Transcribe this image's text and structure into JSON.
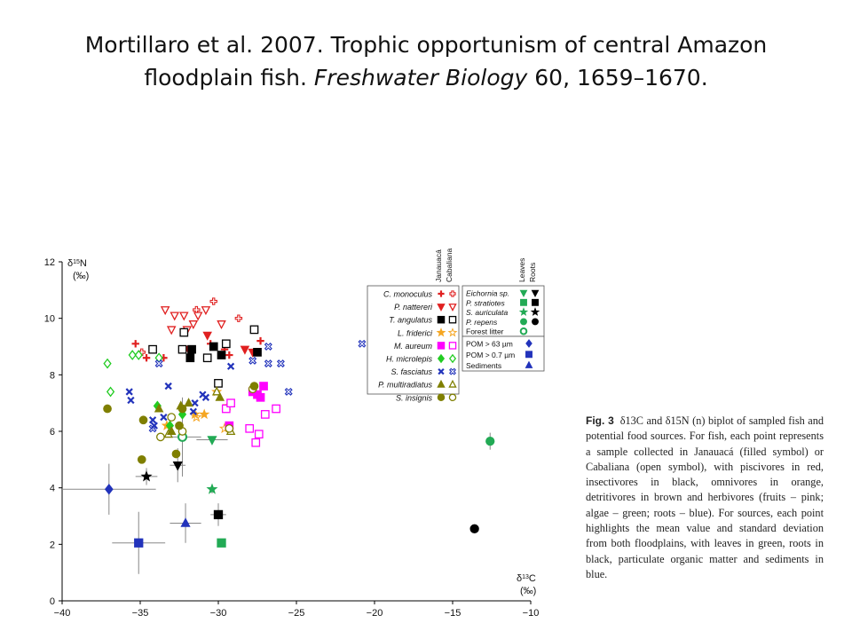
{
  "slide": {
    "title_line1": "Mortillaro et al. 2007. Trophic opportunism of central Amazon",
    "title_line2_prefix": "floodplain fish. ",
    "title_line2_journal": "Freshwater Biology",
    "title_line2_suffix": " 60, 1659–1670."
  },
  "caption": {
    "label": "Fig. 3",
    "text": "δ13C and δ15N (n) biplot of sampled fish and potential food sources. For fish, each point represents a sample collected in Janauacá (filled symbol) or Cabaliana (open symbol), with piscivores in red, insectivores in black, omnivores in orange, detritivores in brown and herbivores (fruits – pink; algae – green; roots – blue). For sources, each point highlights the mean value and standard deviation from both floodplains, with leaves in green, roots in black, particulate organic matter and sediments in blue."
  },
  "chart_data": {
    "type": "scatter",
    "xlabel": "δ13C (‰)",
    "ylabel": "δ15N (‰)",
    "xlim": [
      -40,
      -10
    ],
    "ylim": [
      0,
      12
    ],
    "xticks": [
      -40,
      -35,
      -30,
      -25,
      -20,
      -15,
      -10
    ],
    "yticks": [
      0,
      2,
      4,
      6,
      8,
      10,
      12
    ],
    "grid": false,
    "legend_placement": "upper-right",
    "legend_column_headers": [
      "Janauacá",
      "Cabaliana"
    ],
    "source_column_headers": [
      "Leaves",
      "Roots"
    ],
    "fish_series": [
      {
        "name": "C. monoculus",
        "color": "#e02020",
        "shape": "plus",
        "janauaca": [
          [
            -35.3,
            9.1
          ],
          [
            -34.6,
            8.6
          ],
          [
            -33.5,
            8.6
          ],
          [
            -30.5,
            9.1
          ],
          [
            -29.6,
            8.9
          ],
          [
            -29.3,
            8.7
          ],
          [
            -27.3,
            9.2
          ]
        ],
        "cabaliana": [
          [
            -34.9,
            8.8
          ],
          [
            -31.4,
            10.3
          ],
          [
            -30.3,
            10.6
          ],
          [
            -28.7,
            10.0
          ]
        ]
      },
      {
        "name": "P. nattereri",
        "color": "#e02020",
        "shape": "triangle-down",
        "janauaca": [
          [
            -31.9,
            8.9
          ],
          [
            -30.7,
            9.4
          ],
          [
            -28.3,
            8.9
          ],
          [
            -27.8,
            8.8
          ]
        ],
        "cabaliana": [
          [
            -33.4,
            10.3
          ],
          [
            -32.8,
            10.1
          ],
          [
            -32.2,
            10.1
          ],
          [
            -32.0,
            9.6
          ],
          [
            -31.3,
            10.1
          ],
          [
            -30.8,
            10.3
          ],
          [
            -29.8,
            9.8
          ],
          [
            -31.6,
            9.8
          ],
          [
            -33.0,
            9.6
          ]
        ]
      },
      {
        "name": "T. angulatus",
        "color": "#000000",
        "shape": "square",
        "janauaca": [
          [
            -31.7,
            8.9
          ],
          [
            -31.8,
            8.6
          ],
          [
            -30.3,
            9.0
          ],
          [
            -27.5,
            8.8
          ],
          [
            -29.8,
            8.7
          ]
        ],
        "cabaliana": [
          [
            -34.2,
            8.9
          ],
          [
            -32.2,
            9.5
          ],
          [
            -32.3,
            8.9
          ],
          [
            -30.7,
            8.6
          ],
          [
            -29.5,
            9.1
          ],
          [
            -27.7,
            9.6
          ],
          [
            -30.0,
            7.7
          ]
        ]
      },
      {
        "name": "L. friderici",
        "color": "#f5a623",
        "shape": "star",
        "janauaca": [
          [
            -31.5,
            6.6
          ],
          [
            -30.9,
            6.6
          ],
          [
            -30.1,
            7.4
          ],
          [
            -29.4,
            6.9
          ],
          [
            -33.3,
            6.2
          ]
        ],
        "cabaliana": [
          [
            -31.4,
            6.5
          ],
          [
            -29.6,
            6.1
          ]
        ]
      },
      {
        "name": "M. aureum",
        "color": "#ff00ff",
        "shape": "square",
        "janauaca": [
          [
            -29.3,
            6.2
          ],
          [
            -27.8,
            7.4
          ],
          [
            -27.5,
            7.3
          ],
          [
            -27.1,
            7.6
          ],
          [
            -27.3,
            7.2
          ]
        ],
        "cabaliana": [
          [
            -29.5,
            6.8
          ],
          [
            -28.0,
            6.1
          ],
          [
            -27.6,
            5.6
          ],
          [
            -27.0,
            6.6
          ],
          [
            -26.3,
            6.8
          ],
          [
            -27.4,
            5.9
          ],
          [
            -29.2,
            7.0
          ]
        ]
      },
      {
        "name": "H. microlepis",
        "color": "#22cc22",
        "shape": "diamond",
        "janauaca": [
          [
            -33.9,
            6.9
          ],
          [
            -33.1,
            6.2
          ],
          [
            -32.3,
            6.6
          ]
        ],
        "cabaliana": [
          [
            -37.1,
            8.4
          ],
          [
            -36.9,
            7.4
          ],
          [
            -35.5,
            8.7
          ],
          [
            -35.1,
            8.7
          ],
          [
            -33.8,
            8.6
          ]
        ]
      },
      {
        "name": "S. fasciatus",
        "color": "#2233bb",
        "shape": "x",
        "janauaca": [
          [
            -35.7,
            7.4
          ],
          [
            -35.6,
            7.1
          ],
          [
            -34.2,
            6.4
          ],
          [
            -34.1,
            6.2
          ],
          [
            -33.5,
            6.5
          ],
          [
            -31.6,
            6.7
          ],
          [
            -31.0,
            7.3
          ],
          [
            -30.8,
            7.2
          ],
          [
            -29.2,
            8.3
          ],
          [
            -31.5,
            7.0
          ],
          [
            -33.2,
            7.6
          ]
        ],
        "cabaliana": [
          [
            -33.8,
            8.4
          ],
          [
            -26.8,
            9.0
          ],
          [
            -26.8,
            8.4
          ],
          [
            -26.0,
            8.4
          ],
          [
            -25.5,
            7.4
          ],
          [
            -27.8,
            8.5
          ],
          [
            -20.8,
            9.1
          ],
          [
            -34.2,
            6.1
          ]
        ]
      },
      {
        "name": "P. multiradiatus",
        "color": "#7f7f00",
        "shape": "triangle",
        "janauaca": [
          [
            -33.8,
            6.8
          ],
          [
            -32.4,
            6.9
          ],
          [
            -31.9,
            7.0
          ],
          [
            -29.9,
            7.2
          ],
          [
            -33.0,
            6.0
          ]
        ],
        "cabaliana": [
          [
            -33.2,
            5.9
          ],
          [
            -30.1,
            7.4
          ],
          [
            -29.2,
            6.0
          ]
        ]
      },
      {
        "name": "S. insignis",
        "color": "#7f7f00",
        "shape": "circle",
        "janauaca": [
          [
            -37.1,
            6.8
          ],
          [
            -34.8,
            6.4
          ],
          [
            -34.9,
            5.0
          ],
          [
            -32.7,
            5.2
          ],
          [
            -32.5,
            6.2
          ],
          [
            -32.3,
            6.8
          ],
          [
            -27.7,
            7.6
          ]
        ],
        "cabaliana": [
          [
            -33.7,
            5.8
          ],
          [
            -33.0,
            6.5
          ],
          [
            -32.3,
            6.0
          ],
          [
            -27.8,
            7.5
          ],
          [
            -29.3,
            6.1
          ]
        ]
      }
    ],
    "source_series": [
      {
        "name": "Eichornia sp.",
        "leaves": {
          "x": -30.4,
          "y": 5.7,
          "sx": 1.0,
          "sy": 0.1,
          "color": "#22aa55",
          "shape": "triangle-down"
        },
        "roots": {
          "x": -32.6,
          "y": 4.8,
          "sx": 0.5,
          "sy": 0.6,
          "color": "#000000",
          "shape": "triangle-down"
        }
      },
      {
        "name": "P. stratiotes",
        "leaves": {
          "x": -29.8,
          "y": 2.05,
          "sx": 0,
          "sy": 0,
          "color": "#22aa55",
          "shape": "square"
        },
        "roots": {
          "x": -30.0,
          "y": 3.05,
          "sx": 0.5,
          "sy": 0.4,
          "color": "#000000",
          "shape": "square"
        }
      },
      {
        "name": "S. auriculata",
        "leaves": {
          "x": -30.4,
          "y": 3.95,
          "sx": 0.1,
          "sy": 0.15,
          "color": "#22aa55",
          "shape": "star"
        },
        "roots": {
          "x": -34.6,
          "y": 4.4,
          "sx": 0.7,
          "sy": 0.3,
          "color": "#000000",
          "shape": "star"
        }
      },
      {
        "name": "P. repens",
        "leaves": {
          "x": -12.6,
          "y": 5.65,
          "sx": 0.1,
          "sy": 0.3,
          "color": "#22aa55",
          "shape": "circle"
        },
        "roots": {
          "x": -13.6,
          "y": 2.55,
          "sx": 0,
          "sy": 0,
          "color": "#000000",
          "shape": "circle"
        }
      },
      {
        "name": "Forest litter",
        "leaves": {
          "x": -32.3,
          "y": 5.8,
          "sx": 1.2,
          "sy": 1.4,
          "color": "#22aa55",
          "shape": "circle-open"
        }
      }
    ],
    "organic_matter": [
      {
        "name": "POM > 63 µm",
        "x": -37.0,
        "y": 3.95,
        "sx": 3.0,
        "sy": 0.9,
        "color": "#2233bb",
        "shape": "diamond"
      },
      {
        "name": "POM > 0.7 µm",
        "x": -35.1,
        "y": 2.05,
        "sx": 1.7,
        "sy": 1.1,
        "color": "#2233bb",
        "shape": "square"
      },
      {
        "name": "Sediments",
        "x": -32.1,
        "y": 2.75,
        "sx": 1.0,
        "sy": 0.7,
        "color": "#2233bb",
        "shape": "triangle"
      }
    ]
  }
}
